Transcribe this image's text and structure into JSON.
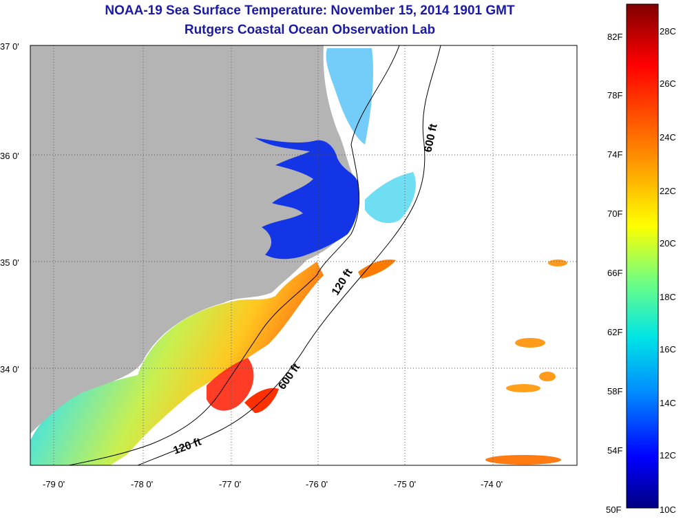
{
  "title": "NOAA-19 Sea Surface Temperature:  November 15, 2014 1901 GMT",
  "subtitle": "Rutgers Coastal Ocean Observation Lab",
  "map": {
    "lat_ticks": [
      "37 0'",
      "36 0'",
      "35 0'",
      "34 0'"
    ],
    "lon_ticks": [
      "-79 0'",
      "-78 0'",
      "-77 0'",
      "-76 0'",
      "-75 0'",
      "-74 0'"
    ],
    "contour_labels": [
      "600 ft",
      "120 ft",
      "600 ft",
      "120 ft"
    ],
    "colors": {
      "land": "#b4b4b4",
      "sound_water": "#1435e6",
      "frame": "#000000"
    }
  },
  "colorbar": {
    "fahrenheit": [
      "82F",
      "78F",
      "74F",
      "70F",
      "66F",
      "62F",
      "58F",
      "54F",
      "50F"
    ],
    "celsius": [
      "28C",
      "26C",
      "24C",
      "22C",
      "20C",
      "18C",
      "16C",
      "14C",
      "12C",
      "10C"
    ],
    "gradient": [
      "#800000",
      "#ff0000",
      "#ff8c00",
      "#ffff00",
      "#70ff80",
      "#00e5e5",
      "#008cff",
      "#0000ff",
      "#000080"
    ]
  }
}
